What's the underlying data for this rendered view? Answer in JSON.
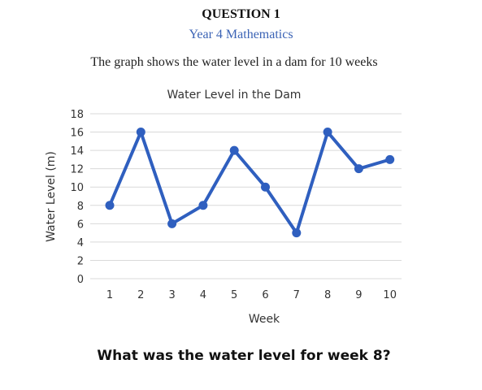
{
  "header": {
    "question_label": "QUESTION 1",
    "subject": "Year 4 Mathematics",
    "intro": "The graph shows the water level in a dam for 10 weeks"
  },
  "chart_data": {
    "type": "line",
    "title": "Water Level in the Dam",
    "xlabel": "Week",
    "ylabel": "Water Level (m)",
    "x": [
      1,
      2,
      3,
      4,
      5,
      6,
      7,
      8,
      9,
      10
    ],
    "y": [
      8,
      16,
      6,
      8,
      14,
      10,
      5,
      16,
      12,
      13
    ],
    "xlim": [
      1,
      10
    ],
    "ylim": [
      0,
      18
    ],
    "yticks": [
      0,
      2,
      4,
      6,
      8,
      10,
      12,
      14,
      16,
      18
    ],
    "grid": true,
    "legend": "none",
    "colors": {
      "line": "#2f5fbf",
      "grid": "#d9d9d9",
      "text": "#333333"
    }
  },
  "question": {
    "prompt": "What was the water level for week 8?"
  }
}
